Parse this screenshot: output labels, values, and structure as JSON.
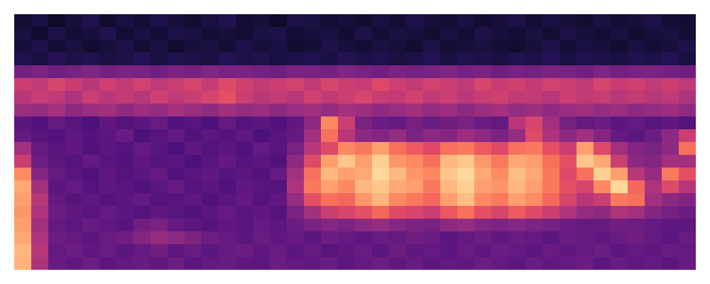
{
  "chart_data": {
    "type": "heatmap",
    "color": "magma",
    "tick_labels": false,
    "zlim": [
      0,
      100
    ],
    "z": [
      [
        10,
        12,
        8,
        11,
        14,
        9,
        12,
        10,
        13,
        11,
        9,
        12,
        14,
        10,
        11,
        8,
        13,
        12,
        10,
        11,
        9,
        12,
        10,
        13,
        11,
        10,
        12,
        9,
        11,
        13,
        10,
        12,
        11,
        9,
        12,
        10,
        11,
        13,
        10,
        9
      ],
      [
        12,
        9,
        13,
        10,
        11,
        14,
        9,
        12,
        10,
        13,
        12,
        10,
        11,
        9,
        12,
        13,
        10,
        11,
        12,
        9,
        13,
        10,
        12,
        11,
        9,
        12,
        10,
        13,
        11,
        10,
        12,
        9,
        13,
        11,
        10,
        12,
        9,
        11,
        12,
        10
      ],
      [
        11,
        13,
        10,
        12,
        9,
        11,
        13,
        10,
        12,
        9,
        11,
        12,
        10,
        13,
        11,
        12,
        9,
        10,
        13,
        11,
        10,
        12,
        11,
        9,
        13,
        10,
        11,
        12,
        10,
        9,
        11,
        13,
        10,
        12,
        11,
        9,
        12,
        10,
        11,
        13
      ],
      [
        14,
        12,
        15,
        13,
        14,
        12,
        13,
        15,
        12,
        14,
        13,
        12,
        15,
        13,
        14,
        12,
        13,
        14,
        12,
        15,
        13,
        14,
        12,
        13,
        15,
        12,
        14,
        13,
        12,
        14,
        13,
        15,
        12,
        14,
        13,
        12,
        14,
        13,
        15,
        12
      ],
      [
        34,
        36,
        33,
        35,
        37,
        34,
        36,
        35,
        33,
        36,
        34,
        37,
        35,
        36,
        34,
        33,
        36,
        35,
        34,
        37,
        35,
        33,
        36,
        34,
        35,
        37,
        34,
        36,
        33,
        35,
        34,
        36,
        35,
        33,
        37,
        34,
        35,
        36,
        34,
        33
      ],
      [
        55,
        52,
        58,
        54,
        50,
        56,
        53,
        57,
        52,
        55,
        58,
        54,
        60,
        56,
        53,
        55,
        57,
        52,
        58,
        55,
        54,
        60,
        56,
        53,
        57,
        55,
        52,
        58,
        54,
        56,
        53,
        57,
        55,
        52,
        58,
        54,
        56,
        53,
        55,
        52
      ],
      [
        50,
        54,
        52,
        48,
        55,
        51,
        53,
        50,
        56,
        52,
        54,
        58,
        62,
        55,
        51,
        53,
        50,
        56,
        52,
        55,
        58,
        54,
        53,
        57,
        52,
        55,
        51,
        54,
        56,
        52,
        53,
        50,
        55,
        52,
        54,
        51,
        53,
        50,
        52,
        48
      ],
      [
        44,
        42,
        46,
        40,
        43,
        45,
        41,
        44,
        42,
        46,
        43,
        41,
        45,
        42,
        44,
        40,
        43,
        45,
        42,
        46,
        44,
        41,
        43,
        45,
        42,
        44,
        40,
        43,
        46,
        42,
        44,
        41,
        43,
        45,
        42,
        44,
        40,
        42,
        44,
        41
      ],
      [
        28,
        25,
        30,
        27,
        24,
        29,
        26,
        28,
        31,
        25,
        27,
        24,
        30,
        26,
        28,
        25,
        29,
        40,
        75,
        55,
        35,
        32,
        30,
        34,
        31,
        33,
        35,
        32,
        30,
        50,
        58,
        45,
        34,
        30,
        32,
        28,
        30,
        27,
        29,
        26
      ],
      [
        30,
        27,
        25,
        29,
        26,
        28,
        31,
        24,
        27,
        30,
        25,
        28,
        26,
        29,
        24,
        27,
        30,
        45,
        70,
        50,
        40,
        38,
        42,
        36,
        40,
        38,
        44,
        40,
        36,
        42,
        60,
        48,
        40,
        45,
        38,
        30,
        28,
        32,
        40,
        55
      ],
      [
        45,
        30,
        27,
        29,
        25,
        28,
        26,
        30,
        27,
        24,
        29,
        26,
        28,
        25,
        30,
        27,
        35,
        50,
        60,
        75,
        72,
        80,
        70,
        65,
        60,
        70,
        72,
        65,
        60,
        70,
        72,
        62,
        55,
        80,
        60,
        45,
        38,
        35,
        40,
        70
      ],
      [
        55,
        32,
        28,
        26,
        30,
        27,
        25,
        29,
        26,
        28,
        24,
        27,
        30,
        26,
        28,
        25,
        40,
        60,
        80,
        88,
        80,
        90,
        78,
        75,
        70,
        85,
        88,
        78,
        72,
        82,
        80,
        70,
        62,
        88,
        82,
        55,
        40,
        38,
        45,
        45
      ],
      [
        75,
        38,
        30,
        27,
        25,
        29,
        26,
        28,
        30,
        25,
        27,
        29,
        26,
        28,
        25,
        30,
        45,
        70,
        85,
        80,
        82,
        92,
        85,
        78,
        75,
        88,
        92,
        82,
        76,
        86,
        82,
        72,
        60,
        70,
        90,
        80,
        50,
        42,
        72,
        62
      ],
      [
        82,
        45,
        28,
        30,
        26,
        29,
        27,
        25,
        28,
        30,
        26,
        28,
        25,
        29,
        27,
        26,
        48,
        72,
        80,
        75,
        85,
        88,
        82,
        80,
        72,
        85,
        90,
        80,
        78,
        85,
        80,
        72,
        62,
        58,
        75,
        92,
        68,
        48,
        60,
        50
      ],
      [
        80,
        50,
        30,
        27,
        29,
        26,
        28,
        30,
        26,
        27,
        29,
        25,
        28,
        30,
        26,
        29,
        42,
        62,
        70,
        68,
        78,
        84,
        75,
        72,
        68,
        80,
        86,
        75,
        72,
        80,
        76,
        68,
        58,
        50,
        55,
        72,
        70,
        45,
        40,
        38
      ],
      [
        78,
        48,
        32,
        29,
        27,
        30,
        28,
        26,
        29,
        27,
        25,
        28,
        30,
        27,
        29,
        26,
        35,
        45,
        55,
        58,
        62,
        68,
        60,
        58,
        55,
        64,
        70,
        62,
        58,
        65,
        60,
        55,
        48,
        42,
        40,
        48,
        45,
        38,
        34,
        32
      ],
      [
        80,
        45,
        30,
        28,
        31,
        29,
        27,
        33,
        35,
        30,
        28,
        26,
        29,
        27,
        30,
        28,
        32,
        35,
        38,
        36,
        40,
        42,
        38,
        36,
        35,
        40,
        42,
        38,
        36,
        38,
        36,
        34,
        32,
        30,
        31,
        33,
        32,
        30,
        29,
        28
      ],
      [
        82,
        48,
        32,
        30,
        28,
        31,
        33,
        38,
        42,
        40,
        36,
        32,
        30,
        28,
        31,
        29,
        30,
        28,
        32,
        30,
        29,
        31,
        30,
        33,
        31,
        28,
        30,
        32,
        29,
        31,
        30,
        28,
        32,
        30,
        29,
        31,
        33,
        30,
        28,
        31
      ],
      [
        85,
        50,
        30,
        32,
        29,
        31,
        28,
        30,
        33,
        29,
        31,
        28,
        30,
        32,
        29,
        31,
        28,
        30,
        27,
        29,
        31,
        28,
        32,
        29,
        30,
        28,
        31,
        29,
        32,
        30,
        28,
        31,
        29,
        30,
        32,
        28,
        30,
        29,
        31,
        30
      ],
      [
        84,
        48,
        31,
        29,
        32,
        28,
        30,
        31,
        29,
        32,
        28,
        30,
        31,
        29,
        28,
        32,
        30,
        29,
        31,
        28,
        30,
        32,
        29,
        31,
        28,
        30,
        29,
        32,
        30,
        28,
        31,
        29,
        30,
        32,
        28,
        31,
        29,
        30,
        28,
        31
      ]
    ]
  }
}
